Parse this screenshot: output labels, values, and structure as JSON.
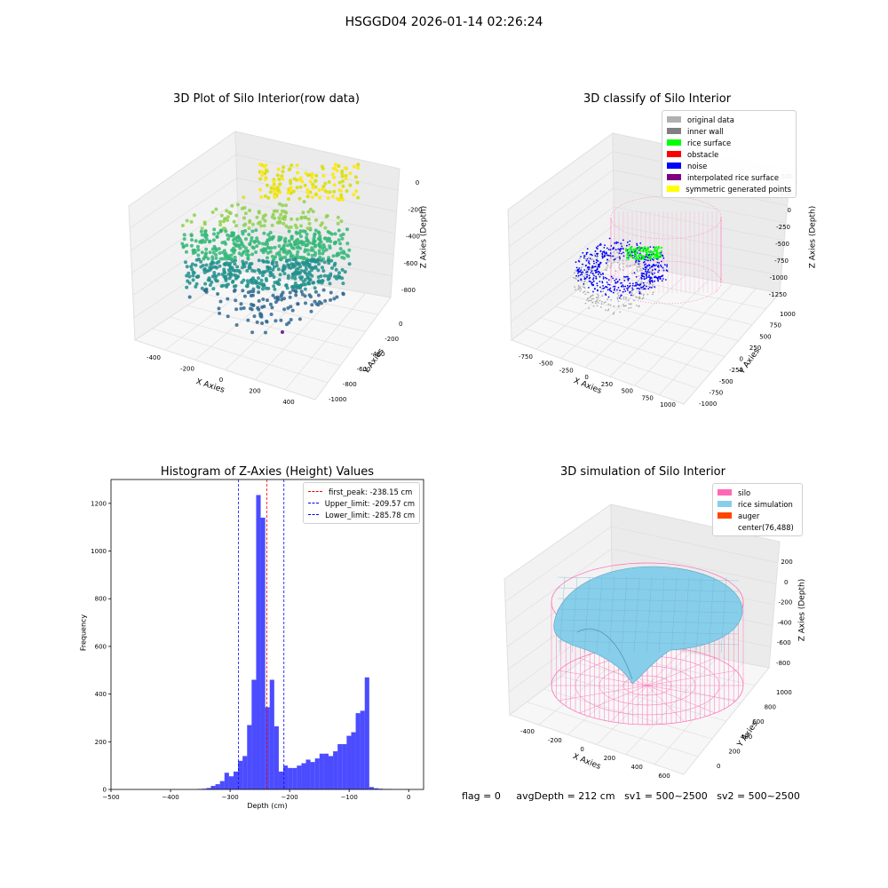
{
  "suptitle": "HSGGD04 2026-01-14 02:26:24",
  "panel_raw": {
    "title": "3D Plot of Silo Interior(row data)",
    "xlabel": "X Axies",
    "ylabel": "Y Axies",
    "zlabel": "Z Axies (Depth)",
    "x_ticks": [
      "-400",
      "-200",
      "0",
      "200",
      "400"
    ],
    "y_ticks": [
      "0",
      "-200",
      "-400",
      "-600",
      "-800",
      "-1000"
    ],
    "z_ticks": [
      "0",
      "-200",
      "-400",
      "-600",
      "-800"
    ]
  },
  "panel_classify": {
    "title": "3D classify of Silo Interior",
    "xlabel": "X Axies",
    "ylabel": "Y Axies",
    "zlabel": "Z Axies (Depth)",
    "x_ticks": [
      "-750",
      "-500",
      "-250",
      "0",
      "250",
      "500",
      "750",
      "1000"
    ],
    "y_ticks": [
      "1000",
      "750",
      "500",
      "250",
      "0",
      "-250",
      "-500",
      "-750",
      "-1000"
    ],
    "z_ticks": [
      "500",
      "250",
      "0",
      "-250",
      "-500",
      "-750",
      "-1000",
      "-1250"
    ],
    "legend": [
      {
        "label": "original data",
        "color": "#b0b0b0"
      },
      {
        "label": "inner wall",
        "color": "#808080"
      },
      {
        "label": "rice surface",
        "color": "#00ff00"
      },
      {
        "label": "obstacle",
        "color": "#ff0000"
      },
      {
        "label": "noise",
        "color": "#0000ff"
      },
      {
        "label": "interpolated rice surface",
        "color": "#800080"
      },
      {
        "label": "symmetric generated points",
        "color": "#ffff00"
      }
    ]
  },
  "chart_data": {
    "type": "bar",
    "title": "Histogram of Z-Axies (Height) Values",
    "xlabel": "Depth (cm)",
    "ylabel": "Frequency",
    "xlim": [
      -500,
      25
    ],
    "ylim": [
      0,
      1300
    ],
    "x_ticks": [
      "-500",
      "-400",
      "-300",
      "-200",
      "-100",
      "0"
    ],
    "y_ticks": [
      "0",
      "200",
      "400",
      "600",
      "800",
      "1000",
      "1200"
    ],
    "bin_width": 7.6,
    "bin_starts": [
      -355,
      -347.4,
      -339.8,
      -332.2,
      -324.6,
      -317,
      -309.4,
      -301.8,
      -294.2,
      -286.6,
      -279,
      -271.4,
      -263.8,
      -256.2,
      -248.6,
      -241,
      -233.4,
      -225.8,
      -218.2,
      -210.6,
      -203,
      -195.4,
      -187.8,
      -180.2,
      -172.6,
      -165,
      -157.4,
      -149.8,
      -142.2,
      -134.6,
      -127,
      -119.4,
      -111.8,
      -104.2,
      -96.6,
      -89,
      -81.4,
      -73.8,
      -66.2,
      -58.6,
      -51,
      -43.4,
      -35.8,
      -28.2,
      -20.6,
      -13,
      -5.4
    ],
    "values": [
      2,
      3,
      6,
      15,
      22,
      35,
      70,
      55,
      75,
      120,
      140,
      270,
      460,
      1235,
      1140,
      345,
      460,
      265,
      75,
      100,
      90,
      90,
      100,
      110,
      125,
      115,
      130,
      150,
      150,
      140,
      160,
      190,
      190,
      225,
      240,
      320,
      330,
      470,
      10,
      5,
      3,
      2,
      2,
      1,
      1,
      1,
      1
    ],
    "bar_color": "#0000ff",
    "lines": [
      {
        "label": "first_peak: -238.15 cm",
        "value": -238.15,
        "color": "#ff0000"
      },
      {
        "label": "Upper_limit: -209.57 cm",
        "value": -209.57,
        "color": "#0000ff"
      },
      {
        "label": "Lower_limit: -285.78 cm",
        "value": -285.78,
        "color": "#0000ff"
      }
    ]
  },
  "panel_sim": {
    "title": "3D simulation of Silo Interior",
    "xlabel": "X Axies",
    "ylabel": "Y Axies",
    "zlabel": "Z Axies (Depth)",
    "x_ticks": [
      "-400",
      "-200",
      "0",
      "200",
      "400",
      "600"
    ],
    "y_ticks": [
      "0",
      "200",
      "400",
      "600",
      "800",
      "1000"
    ],
    "z_ticks": [
      "200",
      "0",
      "-200",
      "-400",
      "-600",
      "-800"
    ],
    "legend": [
      {
        "label": "silo",
        "color": "#ff69b4"
      },
      {
        "label": "rice simulation",
        "color": "#87ceeb"
      },
      {
        "label": "auger",
        "color": "#ff4500"
      },
      {
        "label": "center(76,488)",
        "color": ""
      }
    ]
  },
  "footer": {
    "flag": "flag = 0",
    "avg": "avgDepth = 212 cm",
    "sv1": "sv1 = 500~2500",
    "sv2": "sv2 = 500~2500"
  }
}
